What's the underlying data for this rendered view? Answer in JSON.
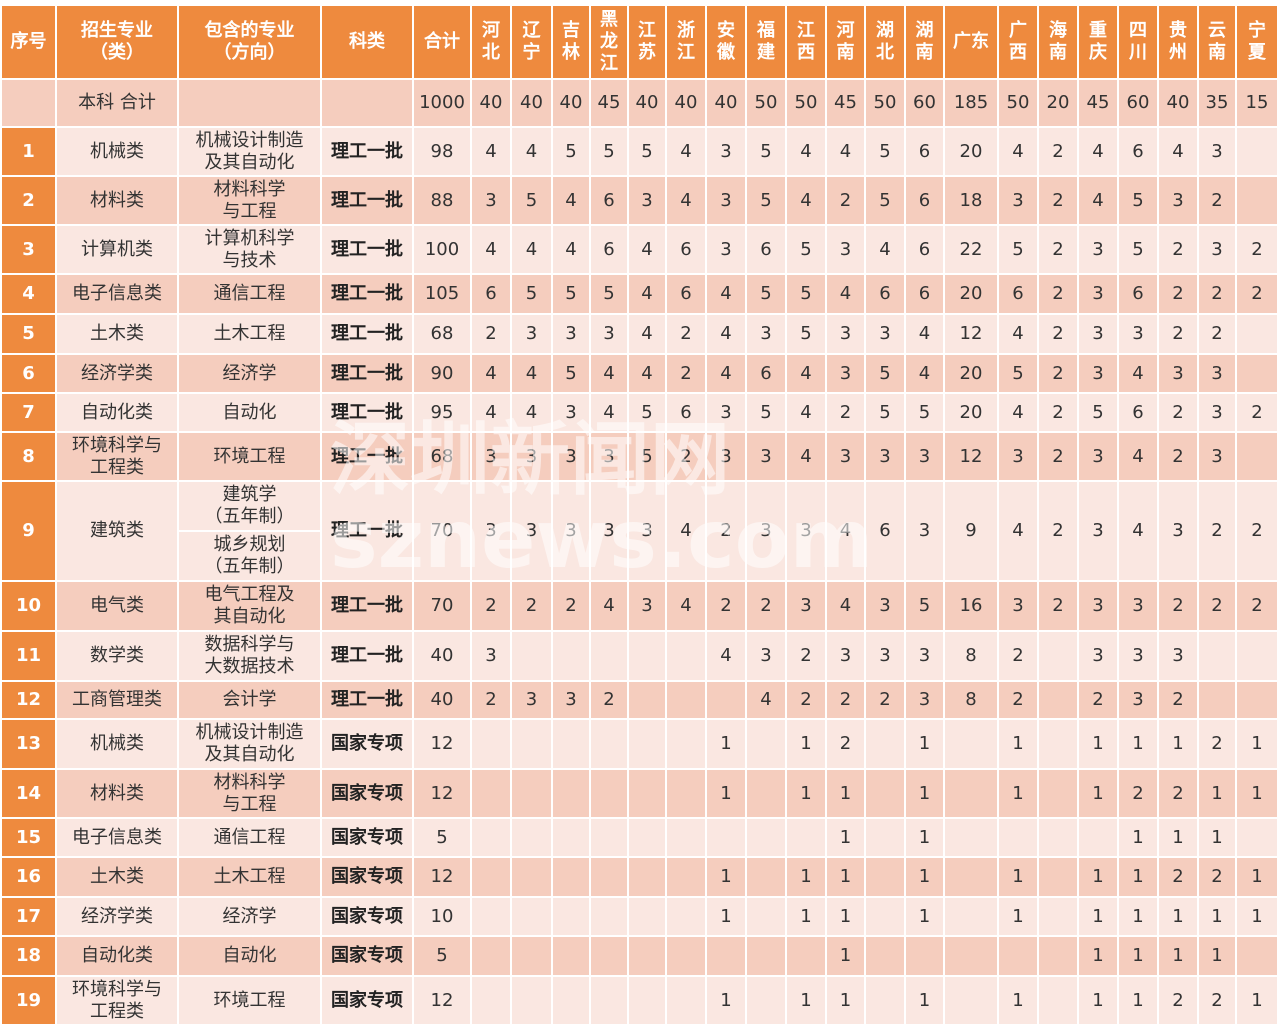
{
  "headers": [
    "序号",
    "招生专业\n（类）",
    "包含的专业\n（方向）",
    "科类",
    "合计",
    "河\n北",
    "辽\n宁",
    "吉\n林",
    "黑\n龙\n江",
    "江\n苏",
    "浙\n江",
    "安\n徽",
    "福\n建",
    "江\n西",
    "河\n南",
    "湖\n北",
    "湖\n南",
    "广东",
    "广\n西",
    "海\n南",
    "重\n庆",
    "四\n川",
    "贵\n州",
    "云\n南",
    "宁\n夏"
  ],
  "total_row": {
    "label": "本科  合计",
    "total": "1000",
    "provinces": [
      "40",
      "40",
      "40",
      "45",
      "40",
      "40",
      "40",
      "50",
      "50",
      "45",
      "50",
      "60",
      "185",
      "50",
      "20",
      "45",
      "60",
      "40",
      "35",
      "15"
    ]
  },
  "rows": [
    {
      "no": "1",
      "major": "机械类",
      "sub": [
        "机械设计制造\n及其自动化"
      ],
      "type": "理工一批",
      "total": "98",
      "provinces": [
        "4",
        "4",
        "5",
        "5",
        "5",
        "4",
        "3",
        "5",
        "4",
        "4",
        "5",
        "6",
        "20",
        "4",
        "2",
        "4",
        "6",
        "4",
        "3",
        ""
      ]
    },
    {
      "no": "2",
      "major": "材料类",
      "sub": [
        "材料科学\n与工程"
      ],
      "type": "理工一批",
      "total": "88",
      "provinces": [
        "3",
        "5",
        "4",
        "6",
        "3",
        "4",
        "3",
        "5",
        "4",
        "2",
        "5",
        "6",
        "18",
        "3",
        "2",
        "4",
        "5",
        "3",
        "2",
        ""
      ]
    },
    {
      "no": "3",
      "major": "计算机类",
      "sub": [
        "计算机科学\n与技术"
      ],
      "type": "理工一批",
      "total": "100",
      "provinces": [
        "4",
        "4",
        "4",
        "6",
        "4",
        "6",
        "3",
        "6",
        "5",
        "3",
        "4",
        "6",
        "22",
        "5",
        "2",
        "3",
        "5",
        "2",
        "3",
        "2"
      ]
    },
    {
      "no": "4",
      "major": "电子信息类",
      "sub": [
        "通信工程"
      ],
      "type": "理工一批",
      "total": "105",
      "provinces": [
        "6",
        "5",
        "5",
        "5",
        "4",
        "6",
        "4",
        "5",
        "5",
        "4",
        "6",
        "6",
        "20",
        "6",
        "2",
        "3",
        "6",
        "2",
        "2",
        "2"
      ]
    },
    {
      "no": "5",
      "major": "土木类",
      "sub": [
        "土木工程"
      ],
      "type": "理工一批",
      "total": "68",
      "provinces": [
        "2",
        "3",
        "3",
        "3",
        "4",
        "2",
        "4",
        "3",
        "5",
        "3",
        "3",
        "4",
        "12",
        "4",
        "2",
        "3",
        "3",
        "2",
        "2",
        ""
      ]
    },
    {
      "no": "6",
      "major": "经济学类",
      "sub": [
        "经济学"
      ],
      "type": "理工一批",
      "total": "90",
      "provinces": [
        "4",
        "4",
        "5",
        "4",
        "4",
        "2",
        "4",
        "6",
        "4",
        "3",
        "5",
        "4",
        "20",
        "5",
        "2",
        "3",
        "4",
        "3",
        "3",
        ""
      ]
    },
    {
      "no": "7",
      "major": "自动化类",
      "sub": [
        "自动化"
      ],
      "type": "理工一批",
      "total": "95",
      "provinces": [
        "4",
        "4",
        "3",
        "4",
        "5",
        "6",
        "3",
        "5",
        "4",
        "2",
        "5",
        "5",
        "20",
        "4",
        "2",
        "5",
        "6",
        "2",
        "3",
        "2"
      ]
    },
    {
      "no": "8",
      "major": "环境科学与\n工程类",
      "sub": [
        "环境工程"
      ],
      "type": "理工一批",
      "total": "68",
      "provinces": [
        "3",
        "3",
        "3",
        "3",
        "5",
        "2",
        "3",
        "3",
        "4",
        "3",
        "3",
        "3",
        "12",
        "3",
        "2",
        "3",
        "4",
        "2",
        "3",
        ""
      ]
    },
    {
      "no": "9",
      "major": "建筑类",
      "sub": [
        "建筑学\n（五年制）",
        "城乡规划\n（五年制）"
      ],
      "type": "理工一批",
      "total": "70",
      "provinces": [
        "3",
        "3",
        "3",
        "3",
        "3",
        "4",
        "2",
        "3",
        "3",
        "4",
        "6",
        "3",
        "9",
        "4",
        "2",
        "3",
        "4",
        "3",
        "2",
        "2"
      ]
    },
    {
      "no": "10",
      "major": "电气类",
      "sub": [
        "电气工程及\n其自动化"
      ],
      "type": "理工一批",
      "total": "70",
      "provinces": [
        "2",
        "2",
        "2",
        "4",
        "3",
        "4",
        "2",
        "2",
        "3",
        "4",
        "3",
        "5",
        "16",
        "3",
        "2",
        "3",
        "3",
        "2",
        "2",
        "2"
      ]
    },
    {
      "no": "11",
      "major": "数学类",
      "sub": [
        "数据科学与\n大数据技术"
      ],
      "type": "理工一批",
      "total": "40",
      "provinces": [
        "3",
        "",
        "",
        "",
        "",
        "",
        "4",
        "3",
        "2",
        "3",
        "3",
        "3",
        "8",
        "2",
        "",
        "3",
        "3",
        "3",
        "",
        ""
      ]
    },
    {
      "no": "12",
      "major": "工商管理类",
      "sub": [
        "会计学"
      ],
      "type": "理工一批",
      "total": "40",
      "provinces": [
        "2",
        "3",
        "3",
        "2",
        "",
        "",
        "",
        "4",
        "2",
        "2",
        "2",
        "3",
        "8",
        "2",
        "",
        "2",
        "3",
        "2",
        "",
        ""
      ]
    },
    {
      "no": "13",
      "major": "机械类",
      "sub": [
        "机械设计制造\n及其自动化"
      ],
      "type": "国家专项",
      "total": "12",
      "provinces": [
        "",
        "",
        "",
        "",
        "",
        "",
        "1",
        "",
        "1",
        "2",
        "",
        "1",
        "",
        "1",
        "",
        "1",
        "1",
        "1",
        "2",
        "1"
      ]
    },
    {
      "no": "14",
      "major": "材料类",
      "sub": [
        "材料科学\n与工程"
      ],
      "type": "国家专项",
      "total": "12",
      "provinces": [
        "",
        "",
        "",
        "",
        "",
        "",
        "1",
        "",
        "1",
        "1",
        "",
        "1",
        "",
        "1",
        "",
        "1",
        "2",
        "2",
        "1",
        "1"
      ]
    },
    {
      "no": "15",
      "major": "电子信息类",
      "sub": [
        "通信工程"
      ],
      "type": "国家专项",
      "total": "5",
      "provinces": [
        "",
        "",
        "",
        "",
        "",
        "",
        "",
        "",
        "",
        "1",
        "",
        "1",
        "",
        "",
        "",
        "",
        "1",
        "1",
        "1",
        ""
      ]
    },
    {
      "no": "16",
      "major": "土木类",
      "sub": [
        "土木工程"
      ],
      "type": "国家专项",
      "total": "12",
      "provinces": [
        "",
        "",
        "",
        "",
        "",
        "",
        "1",
        "",
        "1",
        "1",
        "",
        "1",
        "",
        "1",
        "",
        "1",
        "1",
        "2",
        "2",
        "1"
      ]
    },
    {
      "no": "17",
      "major": "经济学类",
      "sub": [
        "经济学"
      ],
      "type": "国家专项",
      "total": "10",
      "provinces": [
        "",
        "",
        "",
        "",
        "",
        "",
        "1",
        "",
        "1",
        "1",
        "",
        "1",
        "",
        "1",
        "",
        "1",
        "1",
        "1",
        "1",
        "1"
      ]
    },
    {
      "no": "18",
      "major": "自动化类",
      "sub": [
        "自动化"
      ],
      "type": "国家专项",
      "total": "5",
      "provinces": [
        "",
        "",
        "",
        "",
        "",
        "",
        "",
        "",
        "",
        "1",
        "",
        "",
        "",
        "",
        "",
        "1",
        "1",
        "1",
        "1",
        ""
      ]
    },
    {
      "no": "19",
      "major": "环境科学与\n工程类",
      "sub": [
        "环境工程"
      ],
      "type": "国家专项",
      "total": "12",
      "provinces": [
        "",
        "",
        "",
        "",
        "",
        "",
        "1",
        "",
        "1",
        "1",
        "",
        "1",
        "",
        "1",
        "",
        "1",
        "1",
        "2",
        "2",
        "1"
      ]
    }
  ],
  "watermark": {
    "line1": "深圳新闻网",
    "line2": "sznews.com"
  },
  "colors": {
    "header": "#EE8A3E",
    "row_dark": "#F5CDBE",
    "row_light": "#FAE7E1"
  }
}
